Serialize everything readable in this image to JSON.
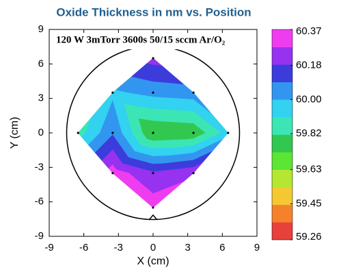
{
  "chart_data": {
    "type": "contour",
    "title": "Oxide Thickness in nm vs. Position",
    "annotation": "120 W 3mTorr 3600s 50/15 sccm Ar/O₂",
    "x_label": "X (cm)",
    "y_label": "Y (cm)",
    "xlim": [
      -9,
      9
    ],
    "ylim": [
      -9,
      9
    ],
    "xticks": [
      -9,
      -6,
      -3,
      0,
      3,
      6,
      9
    ],
    "yticks": [
      -9,
      -6,
      -3,
      0,
      3,
      6,
      9
    ],
    "x": [
      0,
      -3.5,
      0,
      3.5,
      -6.5,
      -3.5,
      0,
      3.5,
      6.5,
      -3.5,
      0,
      3.5,
      0
    ],
    "y": [
      6.5,
      3.5,
      3.5,
      3.5,
      0,
      0,
      0,
      0,
      0,
      -3.5,
      -3.5,
      -3.5,
      -6.5
    ],
    "values": [
      60.22,
      59.98,
      60.03,
      60.05,
      59.86,
      60.08,
      59.72,
      59.74,
      59.95,
      60.33,
      60.2,
      60.26,
      60.33
    ],
    "clim": [
      59.26,
      60.37
    ],
    "cticks": [
      60.37,
      60.18,
      {
        "value": 60,
        "label": "60.00"
      },
      59.82,
      59.63,
      59.45,
      59.26
    ],
    "colors": [
      "#e8403a",
      "#f5822a",
      "#f5c832",
      "#b4e632",
      "#5ae632",
      "#32c850",
      "#3ce6b4",
      "#32d2f0",
      "#3296f0",
      "#3c3cdc",
      "#9632f0",
      "#f03cf0"
    ]
  }
}
